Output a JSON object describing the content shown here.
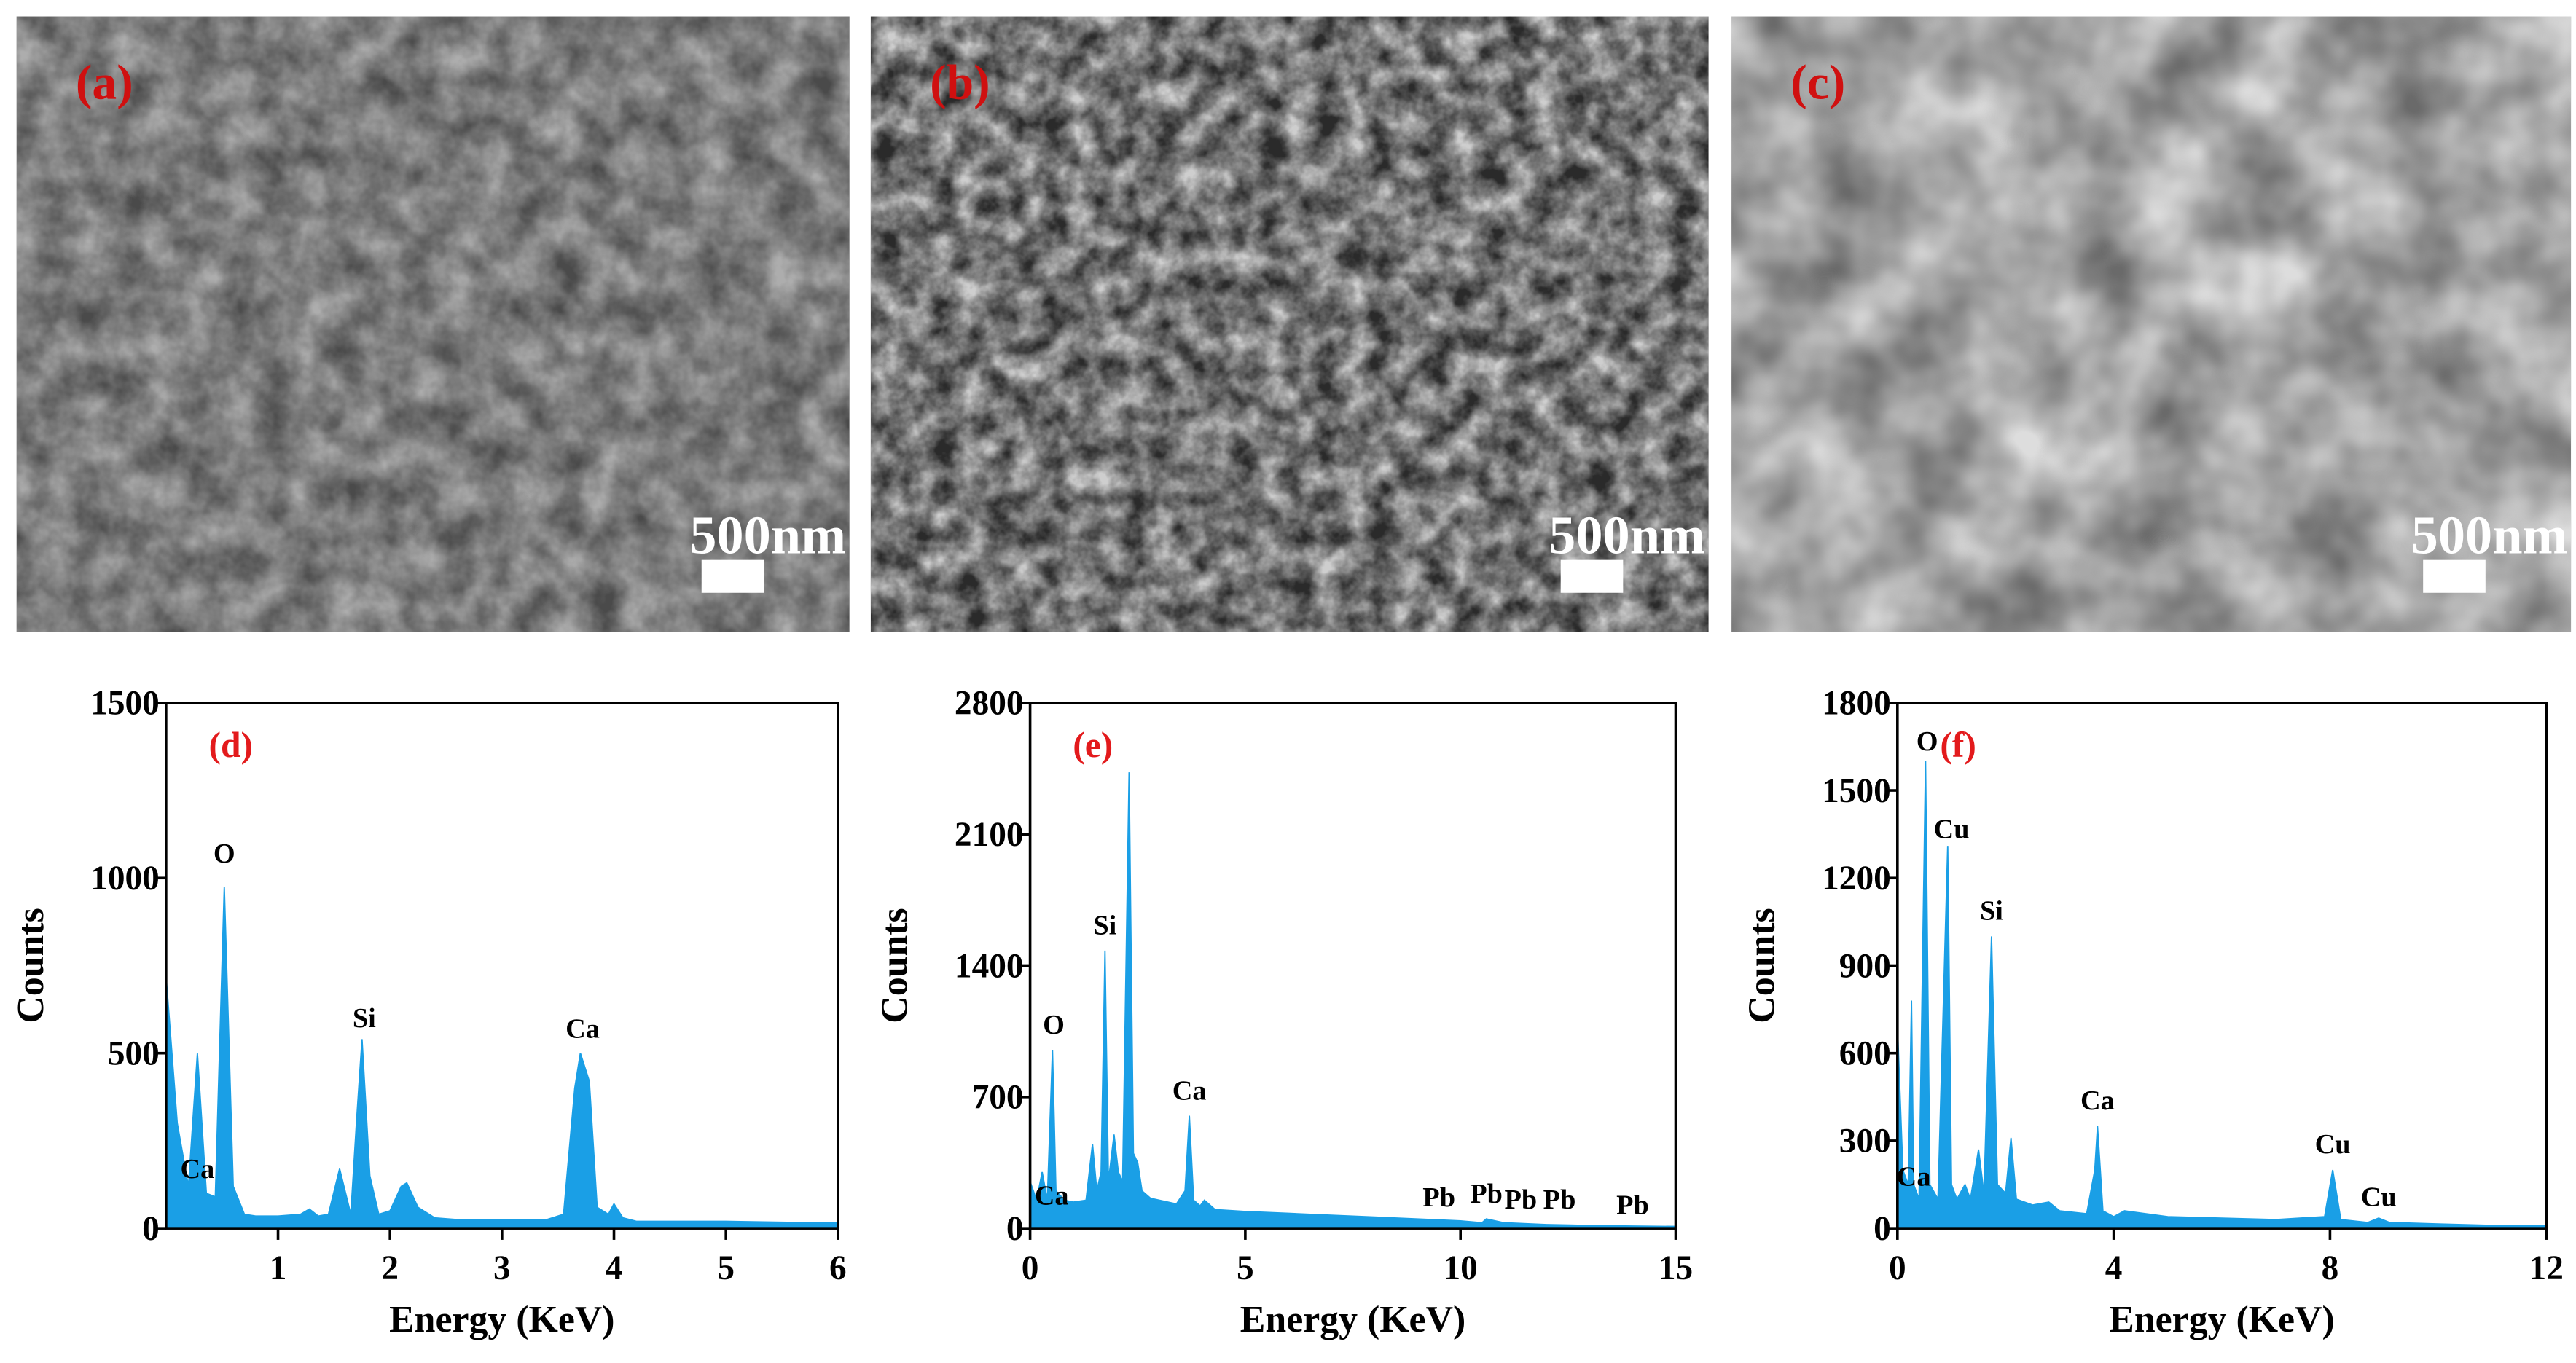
{
  "images": [
    {
      "label": "(a)",
      "scale_bar": "500nm"
    },
    {
      "label": "(b)",
      "scale_bar": "500nm"
    },
    {
      "label": "(c)",
      "scale_bar": "500nm"
    }
  ],
  "chart_data": [
    {
      "type": "area",
      "label": "(d)",
      "xlabel": "Energy (KeV)",
      "ylabel": "Counts",
      "color": "#1a9fe6",
      "xlim": [
        0,
        6
      ],
      "xticks": [
        1,
        2,
        3,
        4,
        5,
        6
      ],
      "ylim": [
        0,
        1500
      ],
      "yticks": [
        0,
        500,
        1000,
        1500
      ],
      "x": [
        0,
        0.1,
        0.2,
        0.28,
        0.36,
        0.44,
        0.52,
        0.6,
        0.7,
        0.8,
        1.0,
        1.2,
        1.28,
        1.36,
        1.45,
        1.55,
        1.65,
        1.7,
        1.75,
        1.82,
        1.9,
        2.0,
        2.1,
        2.15,
        2.25,
        2.4,
        2.6,
        3.0,
        3.4,
        3.55,
        3.65,
        3.7,
        3.78,
        3.85,
        3.95,
        4.0,
        4.08,
        4.2,
        5.0,
        6.0
      ],
      "values": [
        720,
        300,
        120,
        500,
        100,
        90,
        975,
        120,
        40,
        35,
        35,
        40,
        55,
        35,
        40,
        170,
        40,
        300,
        540,
        150,
        40,
        50,
        120,
        130,
        60,
        30,
        25,
        25,
        25,
        40,
        400,
        500,
        420,
        60,
        40,
        70,
        30,
        20,
        20,
        15
      ],
      "annotations": [
        {
          "text": "O",
          "x": 0.52,
          "y": 1030
        },
        {
          "text": "Ca",
          "x": 0.28,
          "y": 130
        },
        {
          "text": "Si",
          "x": 1.77,
          "y": 560
        },
        {
          "text": "Ca",
          "x": 3.72,
          "y": 530
        }
      ]
    },
    {
      "type": "area",
      "label": "(e)",
      "xlabel": "Energy (KeV)",
      "ylabel": "Counts",
      "color": "#1a9fe6",
      "xlim": [
        0,
        15
      ],
      "xticks": [
        0,
        5,
        10,
        15
      ],
      "ylim": [
        0,
        2800
      ],
      "yticks": [
        0,
        700,
        1400,
        2100,
        2800
      ],
      "x": [
        0,
        0.15,
        0.28,
        0.4,
        0.52,
        0.6,
        0.8,
        1.0,
        1.3,
        1.45,
        1.55,
        1.65,
        1.74,
        1.82,
        1.95,
        2.05,
        2.15,
        2.3,
        2.4,
        2.5,
        2.6,
        2.8,
        3.0,
        3.4,
        3.6,
        3.7,
        3.8,
        3.95,
        4.05,
        4.3,
        5,
        6,
        7,
        8,
        9,
        10,
        10.5,
        10.6,
        11,
        12,
        13,
        14,
        15
      ],
      "values": [
        250,
        150,
        300,
        150,
        950,
        200,
        150,
        140,
        150,
        450,
        200,
        300,
        1480,
        250,
        500,
        300,
        250,
        2430,
        400,
        350,
        200,
        160,
        150,
        130,
        200,
        600,
        150,
        120,
        150,
        100,
        90,
        80,
        70,
        60,
        50,
        40,
        30,
        50,
        30,
        20,
        15,
        12,
        10
      ],
      "annotations": [
        {
          "text": "O",
          "x": 0.55,
          "y": 1010
        },
        {
          "text": "Ca",
          "x": 0.5,
          "y": 100
        },
        {
          "text": "Si",
          "x": 1.74,
          "y": 1540
        },
        {
          "text": "Ca",
          "x": 3.7,
          "y": 660
        },
        {
          "text": "Pb",
          "x": 9.5,
          "y": 90
        },
        {
          "text": "Pb",
          "x": 10.6,
          "y": 110
        },
        {
          "text": "Pb",
          "x": 11.4,
          "y": 80
        },
        {
          "text": "Pb",
          "x": 12.3,
          "y": 80
        },
        {
          "text": "Pb",
          "x": 14.0,
          "y": 50
        }
      ]
    },
    {
      "type": "area",
      "label": "(f)",
      "xlabel": "Energy (KeV)",
      "ylabel": "Counts",
      "color": "#1a9fe6",
      "xlim": [
        0,
        12
      ],
      "xticks": [
        0,
        4,
        8,
        12
      ],
      "ylim": [
        0,
        1800
      ],
      "yticks": [
        0,
        300,
        600,
        900,
        1200,
        1500,
        1800
      ],
      "x": [
        0,
        0.1,
        0.2,
        0.26,
        0.3,
        0.4,
        0.52,
        0.6,
        0.75,
        0.93,
        1.0,
        1.1,
        1.25,
        1.35,
        1.5,
        1.6,
        1.74,
        1.85,
        2.0,
        2.1,
        2.2,
        2.5,
        2.8,
        3.0,
        3.5,
        3.65,
        3.7,
        3.8,
        4.0,
        4.2,
        5,
        6,
        7,
        7.9,
        8.05,
        8.2,
        8.7,
        8.9,
        9.1,
        10,
        11,
        12
      ],
      "values": [
        700,
        200,
        150,
        780,
        150,
        100,
        1600,
        150,
        100,
        1310,
        150,
        100,
        150,
        100,
        270,
        120,
        1000,
        150,
        120,
        310,
        100,
        80,
        90,
        60,
        50,
        200,
        350,
        60,
        40,
        60,
        40,
        35,
        30,
        40,
        200,
        30,
        20,
        35,
        20,
        15,
        10,
        8
      ],
      "annotations": [
        {
          "text": "O",
          "x": 0.55,
          "y": 1620
        },
        {
          "text": "Cu",
          "x": 1.0,
          "y": 1320
        },
        {
          "text": "Si",
          "x": 1.74,
          "y": 1040
        },
        {
          "text": "Ca",
          "x": 0.3,
          "y": 130
        },
        {
          "text": "Ca",
          "x": 3.7,
          "y": 390
        },
        {
          "text": "Cu",
          "x": 8.05,
          "y": 240
        },
        {
          "text": "Cu",
          "x": 8.9,
          "y": 60
        }
      ]
    }
  ]
}
